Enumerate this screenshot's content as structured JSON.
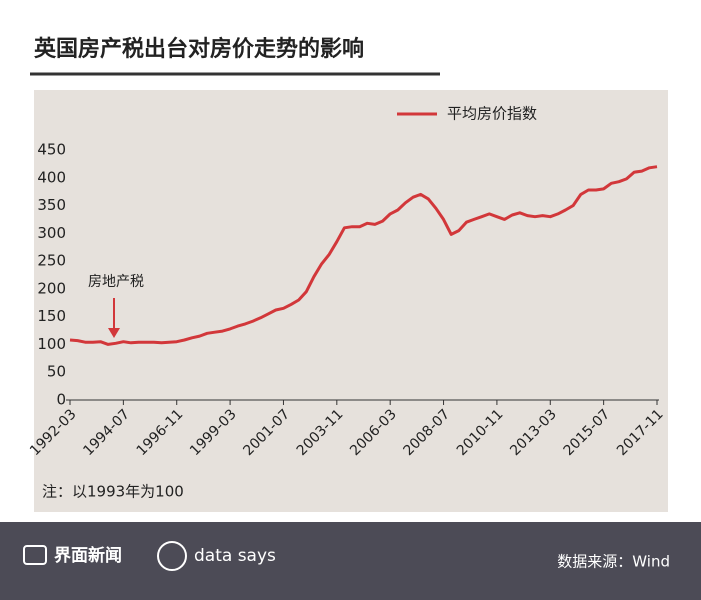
{
  "chart_data": {
    "type": "line",
    "title": "英国房产税出台对房价走势的影响",
    "note": "注：以1993年为100",
    "annotation": "房地产税",
    "x": [
      "1992-03",
      "1992-07",
      "1992-11",
      "1993-03",
      "1993-07",
      "1993-11",
      "1994-03",
      "1994-07",
      "1994-11",
      "1995-03",
      "1995-07",
      "1995-11",
      "1996-03",
      "1996-07",
      "1996-11",
      "1997-03",
      "1997-07",
      "1997-11",
      "1998-03",
      "1998-07",
      "1998-11",
      "1999-03",
      "1999-07",
      "1999-11",
      "2000-03",
      "2000-07",
      "2000-11",
      "2001-03",
      "2001-07",
      "2001-11",
      "2002-03",
      "2002-07",
      "2002-11",
      "2003-03",
      "2003-07",
      "2003-11",
      "2004-03",
      "2004-07",
      "2004-11",
      "2005-03",
      "2005-07",
      "2005-11",
      "2006-03",
      "2006-07",
      "2006-11",
      "2007-03",
      "2007-07",
      "2007-11",
      "2008-03",
      "2008-07",
      "2008-11",
      "2009-03",
      "2009-07",
      "2009-11",
      "2010-03",
      "2010-07",
      "2010-11",
      "2011-03",
      "2011-07",
      "2011-11",
      "2012-03",
      "2012-07",
      "2012-11",
      "2013-03",
      "2013-07",
      "2013-11",
      "2014-03",
      "2014-07",
      "2014-11",
      "2015-03",
      "2015-07",
      "2015-11",
      "2016-03",
      "2016-07",
      "2016-11",
      "2017-03",
      "2017-07",
      "2017-11"
    ],
    "series": [
      {
        "name": "平均房价指数",
        "color": "#d2373a",
        "values": [
          108,
          107,
          104,
          104,
          105,
          100,
          102,
          105,
          103,
          104,
          104,
          104,
          103,
          104,
          105,
          108,
          112,
          115,
          120,
          122,
          124,
          128,
          133,
          137,
          142,
          148,
          155,
          162,
          165,
          172,
          180,
          195,
          222,
          245,
          262,
          285,
          310,
          312,
          312,
          318,
          316,
          322,
          335,
          342,
          355,
          365,
          370,
          362,
          345,
          325,
          298,
          305,
          320,
          325,
          330,
          335,
          330,
          325,
          333,
          337,
          332,
          330,
          332,
          330,
          335,
          342,
          350,
          370,
          378,
          378,
          380,
          390,
          393,
          398,
          410,
          412,
          418,
          420
        ]
      }
    ],
    "xlim": [
      "1992-03",
      "2017-11"
    ],
    "xticks": [
      "1992-03",
      "1994-07",
      "1996-11",
      "1999-03",
      "2001-07",
      "2003-11",
      "2006-03",
      "2008-07",
      "2010-11",
      "2013-03",
      "2015-07",
      "2017-11"
    ],
    "ylim": [
      0,
      450
    ],
    "yticks": [
      0,
      50,
      100,
      150,
      200,
      250,
      300,
      350,
      400,
      450
    ],
    "legend": "top-right"
  },
  "footer": {
    "brand": "界面新闻",
    "brand2": "data says",
    "source": "数据来源：Wind"
  }
}
